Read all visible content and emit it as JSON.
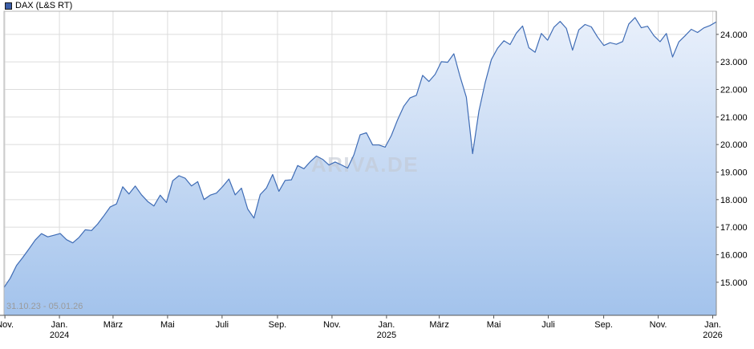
{
  "watermark": "ARIVA.DE",
  "colors": {
    "line": "#3f6cb5",
    "marker": "#3b5ea8",
    "fill_top": "#e9f0fb",
    "fill_bottom": "#a3c3ec",
    "grid": "#dcdcdc",
    "plot_border": "#b4b4b4",
    "axis": "#555555",
    "right_axis": "#888888",
    "label_text": "#000000",
    "muted_text": "#9a9a9a",
    "watermark_text": "#c3c9d4"
  },
  "chart_data": {
    "type": "area",
    "title": "DAX (L&S RT)",
    "period_label": "31.10.23 - 05.01.26",
    "legend_position": "top-left",
    "grid": true,
    "x_range_days": [
      0,
      797
    ],
    "ylim": [
      13800,
      24840
    ],
    "y_ticks": [
      {
        "value": 15000,
        "label": "15.000"
      },
      {
        "value": 16000,
        "label": "16.000"
      },
      {
        "value": 17000,
        "label": "17.000"
      },
      {
        "value": 18000,
        "label": "18.000"
      },
      {
        "value": 19000,
        "label": "19.000"
      },
      {
        "value": 20000,
        "label": "20.000"
      },
      {
        "value": 21000,
        "label": "21.000"
      },
      {
        "value": 22000,
        "label": "22.000"
      },
      {
        "value": 23000,
        "label": "23.000"
      },
      {
        "value": 24000,
        "label": "24.000"
      }
    ],
    "x_ticks": [
      {
        "label": "Nov.",
        "year": "",
        "day": 1
      },
      {
        "label": "Jan.",
        "year": "2024",
        "day": 62
      },
      {
        "label": "März",
        "year": "",
        "day": 122
      },
      {
        "label": "Mai",
        "year": "",
        "day": 183
      },
      {
        "label": "Juli",
        "year": "",
        "day": 244
      },
      {
        "label": "Sep.",
        "year": "",
        "day": 306
      },
      {
        "label": "Nov.",
        "year": "",
        "day": 367
      },
      {
        "label": "Jan.",
        "year": "2025",
        "day": 428
      },
      {
        "label": "März",
        "year": "",
        "day": 487
      },
      {
        "label": "Mai",
        "year": "",
        "day": 548
      },
      {
        "label": "Juli",
        "year": "",
        "day": 609
      },
      {
        "label": "Sep.",
        "year": "",
        "day": 671
      },
      {
        "label": "Nov.",
        "year": "",
        "day": 732
      },
      {
        "label": "Jan.",
        "year": "2026",
        "day": 793
      }
    ],
    "series": [
      {
        "name": "DAX (L&S RT)",
        "values": [
          14810,
          15150,
          15610,
          15900,
          16215,
          16533,
          16766,
          16650,
          16706,
          16769,
          16547,
          16431,
          16627,
          16904,
          16880,
          17117,
          17419,
          17735,
          17842,
          18466,
          18205,
          18492,
          18175,
          17930,
          17770,
          18161,
          17896,
          18686,
          18869,
          18774,
          18497,
          18652,
          18002,
          18164,
          18235,
          18475,
          18748,
          18171,
          18417,
          17661,
          17330,
          18183,
          18422,
          18912,
          18302,
          18699,
          18720,
          19238,
          19121,
          19374,
          19583,
          19463,
          19255,
          19366,
          19263,
          19146,
          19626,
          20358,
          20426,
          19985,
          19984,
          19906,
          20329,
          20903,
          21395,
          21697,
          21787,
          22513,
          22288,
          22551,
          23009,
          22987,
          23295,
          22462,
          21717,
          19670,
          21205,
          22242,
          23087,
          23499,
          23767,
          23630,
          24044,
          24304,
          23516,
          23351,
          24033,
          23787,
          24255,
          24470,
          24218,
          23426,
          24163,
          24359,
          24273,
          23902,
          23597,
          23698,
          23639,
          23739,
          24378,
          24611,
          24241,
          24296,
          23958,
          23734,
          24033,
          23180,
          23726,
          23949,
          24186,
          24069,
          24234,
          24322,
          24452
        ]
      }
    ]
  }
}
